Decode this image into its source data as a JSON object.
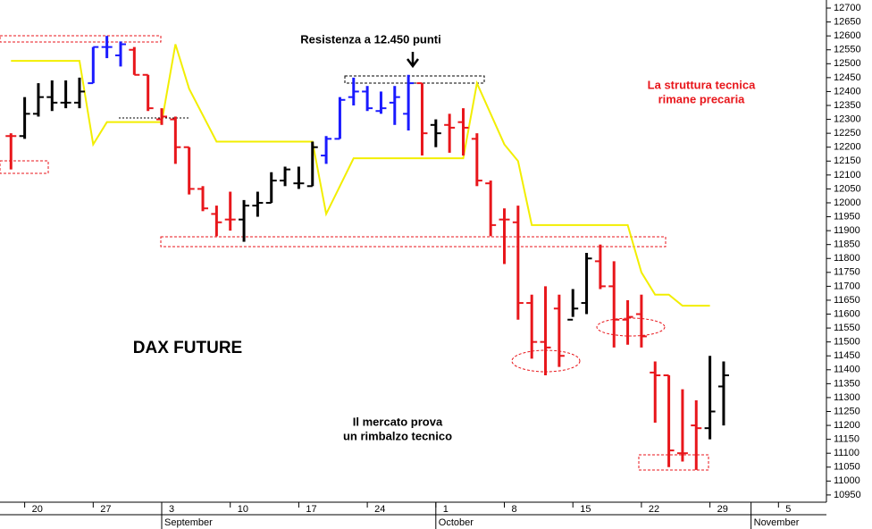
{
  "chart_data": {
    "type": "ohlc",
    "title": "DAX FUTURE",
    "x": [
      0,
      1,
      2,
      3,
      4,
      5,
      6,
      7,
      8,
      9,
      10,
      11,
      12,
      13,
      14,
      15,
      16,
      17,
      18,
      19,
      20,
      21,
      22,
      23,
      24,
      25,
      26,
      27,
      28,
      29,
      30,
      31,
      32,
      33,
      34,
      35,
      36,
      37,
      38,
      39,
      40,
      41,
      42,
      43,
      44,
      45,
      46,
      47,
      48,
      49,
      50,
      51,
      52
    ],
    "open": [
      12240,
      12240,
      12320,
      12380,
      12360,
      12360,
      12430,
      12560,
      12530,
      12550,
      12460,
      12300,
      12300,
      12200,
      12050,
      11960,
      11940,
      11940,
      11990,
      12000,
      12080,
      12070,
      12060,
      12170,
      12230,
      12380,
      12400,
      12330,
      12360,
      12320,
      12430,
      12280,
      12280,
      12290,
      12230,
      12070,
      11940,
      11930,
      11640,
      11500,
      11620,
      11580,
      11640,
      11790,
      11700,
      11580,
      11600,
      11390,
      11380,
      11100,
      11200,
      11190,
      11340
    ],
    "high": [
      12250,
      12380,
      12430,
      12440,
      12440,
      12450,
      12560,
      12600,
      12580,
      12560,
      12460,
      12340,
      12310,
      12200,
      12060,
      11990,
      12040,
      12010,
      12040,
      12110,
      12130,
      12130,
      12220,
      12240,
      12380,
      12450,
      12420,
      12400,
      12420,
      12460,
      12430,
      12300,
      12320,
      12340,
      12250,
      12080,
      11980,
      11990,
      11670,
      11700,
      11670,
      11690,
      11820,
      11850,
      11790,
      11650,
      11670,
      11430,
      11380,
      11330,
      11290,
      11450,
      11430
    ],
    "low": [
      12120,
      12230,
      12310,
      12330,
      12340,
      12340,
      12430,
      12520,
      12490,
      12460,
      12330,
      12280,
      12140,
      12030,
      11970,
      11880,
      11900,
      11860,
      11950,
      12000,
      12060,
      12050,
      12060,
      12140,
      12230,
      12350,
      12330,
      12320,
      12280,
      12260,
      12170,
      12200,
      12180,
      12170,
      12060,
      11880,
      11780,
      11580,
      11440,
      11380,
      11410,
      11590,
      11600,
      11690,
      11480,
      11490,
      11480,
      11210,
      11050,
      11070,
      11040,
      11150,
      11200
    ],
    "close": [
      12240,
      12320,
      12380,
      12360,
      12360,
      12400,
      12560,
      12560,
      12570,
      12460,
      12340,
      12310,
      12200,
      12050,
      11980,
      11930,
      11940,
      11990,
      12000,
      12080,
      12120,
      12070,
      12200,
      12230,
      12370,
      12400,
      12340,
      12340,
      12380,
      12430,
      12250,
      12250,
      12270,
      12270,
      12080,
      11920,
      11940,
      11640,
      11500,
      11480,
      11450,
      11620,
      11800,
      11700,
      11580,
      11590,
      11520,
      11380,
      11110,
      11100,
      11190,
      11250,
      11380
    ],
    "colors": [
      "#e8161b",
      "#000000",
      "#000000",
      "#000000",
      "#000000",
      "#000000",
      "#1a1aff",
      "#1a1aff",
      "#1a1aff",
      "#e8161b",
      "#e8161b",
      "#e8161b",
      "#e8161b",
      "#e8161b",
      "#e8161b",
      "#e8161b",
      "#e8161b",
      "#000000",
      "#000000",
      "#000000",
      "#000000",
      "#000000",
      "#000000",
      "#1a1aff",
      "#1a1aff",
      "#1a1aff",
      "#1a1aff",
      "#1a1aff",
      "#1a1aff",
      "#1a1aff",
      "#e8161b",
      "#000000",
      "#e8161b",
      "#e8161b",
      "#e8161b",
      "#e8161b",
      "#e8161b",
      "#e8161b",
      "#e8161b",
      "#e8161b",
      "#e8161b",
      "#000000",
      "#000000",
      "#e8161b",
      "#e8161b",
      "#e8161b",
      "#e8161b",
      "#e8161b",
      "#e8161b",
      "#e8161b",
      "#e8161b",
      "#000000",
      "#000000"
    ],
    "stop_line": {
      "color": "#f2ee00",
      "x": [
        0,
        5,
        6,
        7,
        11,
        12,
        13,
        15,
        22,
        23,
        25,
        33,
        34,
        36,
        37,
        38,
        45,
        46,
        47,
        48,
        49,
        51
      ],
      "values": [
        12510,
        12510,
        12210,
        12290,
        12290,
        12570,
        12410,
        12220,
        12220,
        11960,
        12160,
        12160,
        12430,
        12210,
        12150,
        11920,
        11920,
        11750,
        11670,
        11670,
        11630,
        11630
      ]
    },
    "xlim": [
      -0.8,
      59.5
    ],
    "xticks": [
      {
        "value": 1,
        "label": "20"
      },
      {
        "value": 6,
        "label": "27"
      },
      {
        "value": 11,
        "label": "3"
      },
      {
        "value": 16,
        "label": "10"
      },
      {
        "value": 21,
        "label": "17"
      },
      {
        "value": 26,
        "label": "24"
      },
      {
        "value": 31,
        "label": "1"
      },
      {
        "value": 36,
        "label": "8"
      },
      {
        "value": 41,
        "label": "15"
      },
      {
        "value": 46,
        "label": "22"
      },
      {
        "value": 51,
        "label": "29"
      },
      {
        "value": 56,
        "label": "5"
      }
    ],
    "months": [
      {
        "value": 11,
        "label": "September"
      },
      {
        "value": 31,
        "label": "October"
      },
      {
        "value": 54,
        "label": "November"
      }
    ],
    "ylim": [
      10924,
      12729
    ],
    "yticks": [
      10950,
      11000,
      11050,
      11100,
      11150,
      11200,
      11250,
      11300,
      11350,
      11400,
      11450,
      11500,
      11550,
      11600,
      11650,
      11700,
      11750,
      11800,
      11850,
      11900,
      11950,
      12000,
      12050,
      12100,
      12150,
      12200,
      12250,
      12300,
      12350,
      12400,
      12450,
      12500,
      12550,
      12600,
      12650,
      12700
    ],
    "annotations": {
      "resistance": "Resistenza a 12.450 punti",
      "structure": [
        "La struttura tecnica",
        "rimane precaria"
      ],
      "rebound": [
        "Il mercato prova",
        "un rimbalzo tecnico"
      ]
    }
  }
}
